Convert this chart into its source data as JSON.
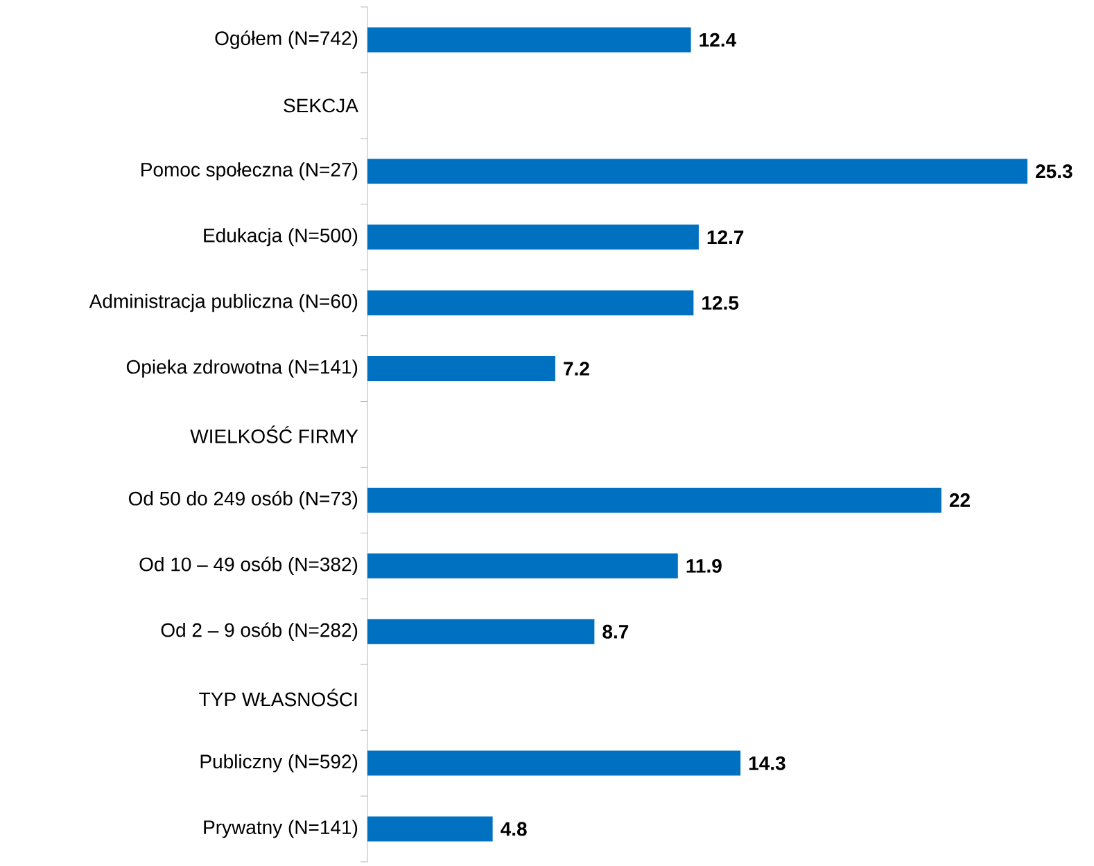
{
  "chart_data": {
    "type": "bar",
    "orientation": "horizontal",
    "data_labels": true,
    "color": "#0070c0",
    "categories": [
      "Ogółem (N=742)",
      "SEKCJA",
      "Pomoc społeczna (N=27)",
      "Edukacja (N=500)",
      "Administracja publiczna (N=60)",
      "Opieka zdrowotna (N=141)",
      "WIELKOŚĆ FIRMY",
      "Od 50 do 249 osób (N=73)",
      "Od 10 – 49 osób (N=382)",
      "Od 2 – 9 osób (N=282)",
      "TYP WŁASNOŚCI",
      "Publiczny (N=592)",
      "Prywatny (N=141)"
    ],
    "values": [
      12.4,
      null,
      25.3,
      12.7,
      12.5,
      7.2,
      null,
      22,
      11.9,
      8.7,
      null,
      14.3,
      4.8
    ]
  }
}
